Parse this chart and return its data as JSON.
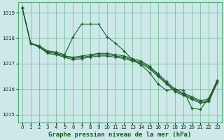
{
  "xlabel": "Graphe pression niveau de la mer (hPa)",
  "ylim": [
    1014.7,
    1019.4
  ],
  "xlim": [
    -0.5,
    23.5
  ],
  "yticks": [
    1015,
    1016,
    1017,
    1018,
    1019
  ],
  "xticks": [
    0,
    1,
    2,
    3,
    4,
    5,
    6,
    7,
    8,
    9,
    10,
    11,
    12,
    13,
    14,
    15,
    16,
    17,
    18,
    19,
    20,
    21,
    22,
    23
  ],
  "bg_color": "#cce8e8",
  "grid_color": "#55aa77",
  "line_color": "#1a5c2a",
  "series1": [
    1019.2,
    1017.8,
    1017.7,
    1017.5,
    1017.45,
    1017.35,
    1018.05,
    1018.55,
    1018.55,
    1018.55,
    1018.05,
    1017.8,
    1017.5,
    1017.15,
    1016.95,
    1016.65,
    1016.2,
    1015.95,
    1016.0,
    1015.95,
    1015.25,
    1015.2,
    1015.65,
    1016.35
  ],
  "series2": [
    1019.2,
    1017.8,
    1017.65,
    1017.45,
    1017.4,
    1017.3,
    1017.25,
    1017.3,
    1017.35,
    1017.4,
    1017.4,
    1017.35,
    1017.3,
    1017.2,
    1017.1,
    1016.9,
    1016.6,
    1016.3,
    1016.0,
    1015.85,
    1015.7,
    1015.55,
    1015.6,
    1016.35
  ],
  "series3": [
    1019.2,
    1017.8,
    1017.65,
    1017.45,
    1017.4,
    1017.3,
    1017.2,
    1017.25,
    1017.3,
    1017.35,
    1017.35,
    1017.3,
    1017.25,
    1017.15,
    1017.05,
    1016.85,
    1016.55,
    1016.25,
    1015.95,
    1015.8,
    1015.65,
    1015.5,
    1015.55,
    1016.3
  ],
  "series4": [
    1019.2,
    1017.8,
    1017.65,
    1017.4,
    1017.35,
    1017.25,
    1017.15,
    1017.2,
    1017.25,
    1017.3,
    1017.3,
    1017.25,
    1017.2,
    1017.1,
    1017.0,
    1016.8,
    1016.5,
    1016.2,
    1015.9,
    1015.75,
    1015.6,
    1015.45,
    1015.5,
    1016.25
  ]
}
